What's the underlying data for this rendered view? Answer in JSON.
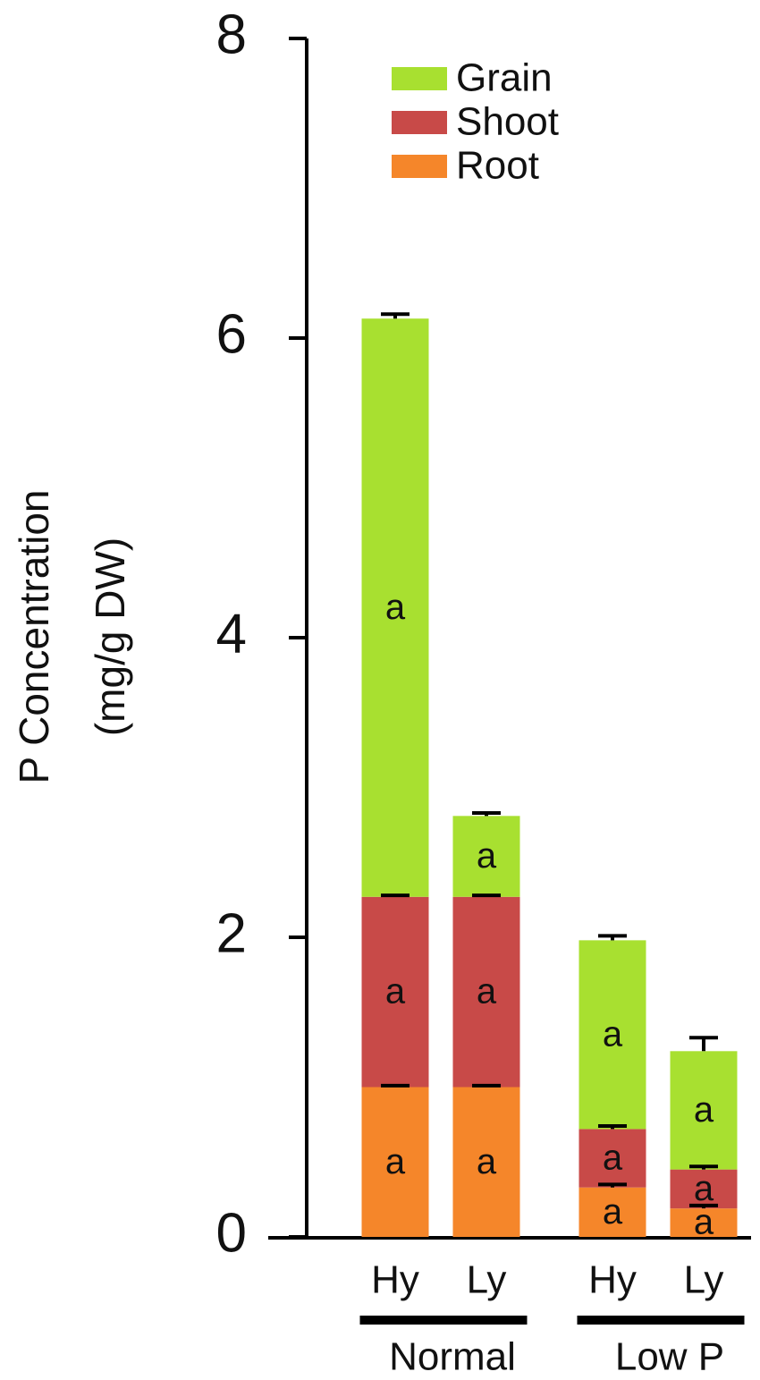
{
  "chart_data": {
    "type": "stacked_bar",
    "ylabel": [
      "P Concentration",
      "(mg/g DW)"
    ],
    "groups": [
      {
        "name": "Normal",
        "categories": [
          "Hy",
          "Ly"
        ]
      },
      {
        "name": "Low P",
        "categories": [
          "Hy",
          "Ly"
        ]
      }
    ],
    "series": [
      {
        "name": "Root",
        "color": "#f5862a",
        "values": [
          1.0,
          1.0,
          0.33,
          0.19
        ],
        "errors": [
          0.01,
          0.01,
          0.02,
          0.02
        ],
        "letters": [
          "a",
          "a",
          "a",
          "a"
        ]
      },
      {
        "name": "Shoot",
        "color": "#c84a48",
        "values": [
          1.27,
          1.27,
          0.39,
          0.26
        ],
        "errors": [
          0.01,
          0.01,
          0.02,
          0.02
        ],
        "letters": [
          "a",
          "a",
          "a",
          "a"
        ]
      },
      {
        "name": "Grain",
        "color": "#a8e030",
        "values": [
          3.86,
          0.54,
          1.26,
          0.79
        ],
        "errors": [
          0.03,
          0.02,
          0.03,
          0.09
        ],
        "letters": [
          "a",
          "a",
          "a",
          "a"
        ]
      }
    ],
    "ylim": [
      0,
      8
    ],
    "yticks": [
      0,
      2,
      4,
      6,
      8
    ]
  }
}
